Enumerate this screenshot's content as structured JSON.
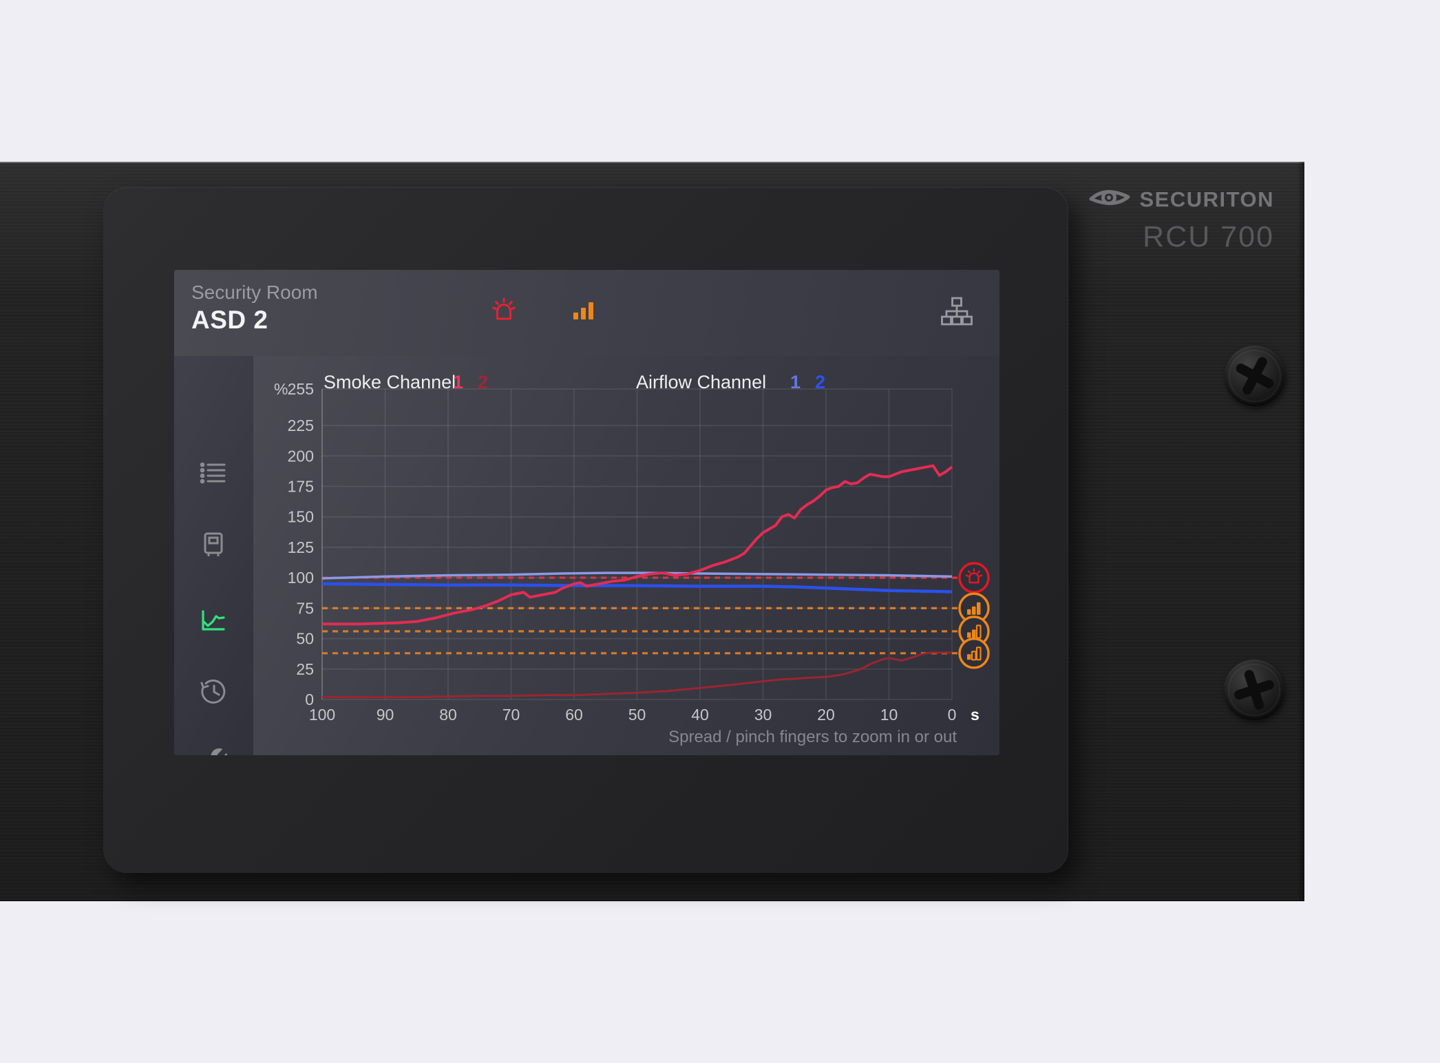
{
  "device": {
    "brand": "SECURITON",
    "model": "RCU 700",
    "brand_logo_icon": "eye-icon",
    "hardware": [
      "screw-top",
      "screw-bottom"
    ]
  },
  "screen": {
    "header": {
      "location": "Security Room",
      "detector_name": "ASD 2",
      "icons": [
        {
          "name": "alarm-beacon-icon",
          "color": "#e82132"
        },
        {
          "name": "smoke-level-bars-icon",
          "color": "#ef8718"
        },
        {
          "name": "network-icon",
          "color": "#9a9aa1"
        }
      ]
    },
    "sidebar": {
      "icon_color": "#8b8b92",
      "active_color": "#2de57d",
      "items": [
        {
          "id": "event-list",
          "icon": "list-icon",
          "active": false
        },
        {
          "id": "detector",
          "icon": "detector-icon",
          "active": false
        },
        {
          "id": "trend-chart",
          "icon": "chart-icon",
          "active": true
        },
        {
          "id": "history",
          "icon": "history-icon",
          "active": false
        },
        {
          "id": "settings",
          "icon": "wrench-icon",
          "active": false
        }
      ]
    },
    "legend": {
      "smoke": {
        "label": "Smoke Channel",
        "channels": [
          {
            "n": "1",
            "color": "#e8395c"
          },
          {
            "n": "2",
            "color": "#9e2732"
          }
        ]
      },
      "airflow": {
        "label": "Airflow Channel",
        "channels": [
          {
            "n": "1",
            "color": "#6577dd"
          },
          {
            "n": "2",
            "color": "#2d52f0"
          }
        ]
      }
    },
    "footer_hint": "Spread / pinch fingers to zoom in or out"
  },
  "chart_data": {
    "type": "line",
    "y_prefix": "%",
    "x_unit": "s",
    "xlim": [
      100,
      0
    ],
    "ylim": [
      0,
      255
    ],
    "x_ticks": [
      100,
      90,
      80,
      70,
      60,
      50,
      40,
      30,
      20,
      10,
      0
    ],
    "y_ticks": [
      0,
      25,
      50,
      75,
      100,
      125,
      150,
      175,
      200,
      225,
      255
    ],
    "grid": true,
    "tick_color": "#c6c6cb",
    "series": [
      {
        "name": "Smoke 2",
        "color": "#9b2530",
        "width": 3,
        "points": [
          [
            100,
            2
          ],
          [
            95,
            2
          ],
          [
            90,
            2
          ],
          [
            85,
            2
          ],
          [
            80,
            2.5
          ],
          [
            75,
            3
          ],
          [
            70,
            3
          ],
          [
            65,
            3.5
          ],
          [
            60,
            3.5
          ],
          [
            55,
            4.5
          ],
          [
            50,
            5.5
          ],
          [
            45,
            7
          ],
          [
            40,
            9.5
          ],
          [
            35,
            12
          ],
          [
            30,
            15
          ],
          [
            27,
            16.5
          ],
          [
            25,
            17
          ],
          [
            22,
            18
          ],
          [
            20,
            18.5
          ],
          [
            18,
            20
          ],
          [
            17,
            21
          ],
          [
            16,
            22.5
          ],
          [
            15,
            24
          ],
          [
            14,
            26
          ],
          [
            13,
            29
          ],
          [
            12,
            31
          ],
          [
            11,
            33
          ],
          [
            10,
            34
          ],
          [
            9,
            33
          ],
          [
            8,
            32
          ],
          [
            7,
            33.5
          ],
          [
            6,
            35
          ],
          [
            5,
            37
          ],
          [
            4,
            38
          ],
          [
            3,
            38.5
          ],
          [
            2,
            38.5
          ],
          [
            1,
            38.5
          ],
          [
            0,
            38.5
          ]
        ]
      },
      {
        "name": "Airflow 2",
        "color": "#2b50ee",
        "width": 4.5,
        "points": [
          [
            100,
            95
          ],
          [
            90,
            94.5
          ],
          [
            80,
            94
          ],
          [
            70,
            94
          ],
          [
            60,
            93.5
          ],
          [
            50,
            93.5
          ],
          [
            40,
            93
          ],
          [
            30,
            93
          ],
          [
            25,
            92.5
          ],
          [
            20,
            91.5
          ],
          [
            15,
            90.5
          ],
          [
            10,
            89.5
          ],
          [
            5,
            89
          ],
          [
            0,
            88.5
          ]
        ]
      },
      {
        "name": "Airflow 1",
        "color": "#8b99e6",
        "width": 3.5,
        "points": [
          [
            100,
            99.5
          ],
          [
            90,
            101
          ],
          [
            80,
            102
          ],
          [
            70,
            102.5
          ],
          [
            62,
            103.5
          ],
          [
            55,
            104
          ],
          [
            48,
            104
          ],
          [
            40,
            103.5
          ],
          [
            30,
            103
          ],
          [
            20,
            102.5
          ],
          [
            10,
            102
          ],
          [
            0,
            101
          ]
        ]
      },
      {
        "name": "Smoke 1",
        "color": "#e42c53",
        "width": 4,
        "points": [
          [
            100,
            62
          ],
          [
            97,
            62
          ],
          [
            94,
            62
          ],
          [
            91,
            62.5
          ],
          [
            88,
            63
          ],
          [
            85,
            64
          ],
          [
            82,
            67
          ],
          [
            79,
            71
          ],
          [
            76,
            74
          ],
          [
            74,
            77
          ],
          [
            72,
            81
          ],
          [
            70,
            86
          ],
          [
            68,
            88
          ],
          [
            67,
            84
          ],
          [
            65,
            86
          ],
          [
            63,
            88
          ],
          [
            62,
            91
          ],
          [
            60,
            95
          ],
          [
            59,
            96
          ],
          [
            58,
            93
          ],
          [
            56,
            95
          ],
          [
            54,
            97
          ],
          [
            52,
            98
          ],
          [
            50,
            101
          ],
          [
            48,
            103
          ],
          [
            46,
            104
          ],
          [
            44,
            102
          ],
          [
            42,
            103
          ],
          [
            40,
            106
          ],
          [
            38,
            110
          ],
          [
            36,
            113
          ],
          [
            34,
            117
          ],
          [
            33,
            120
          ],
          [
            32,
            126
          ],
          [
            31,
            132
          ],
          [
            30,
            137
          ],
          [
            29,
            140
          ],
          [
            28,
            143
          ],
          [
            27,
            150
          ],
          [
            26,
            152
          ],
          [
            25,
            149
          ],
          [
            24,
            156
          ],
          [
            23,
            160
          ],
          [
            22,
            163
          ],
          [
            21,
            167
          ],
          [
            20,
            172
          ],
          [
            19,
            174
          ],
          [
            18,
            175
          ],
          [
            17,
            179
          ],
          [
            16,
            177
          ],
          [
            15,
            178
          ],
          [
            14,
            182
          ],
          [
            13,
            185
          ],
          [
            12,
            184
          ],
          [
            11,
            183
          ],
          [
            10,
            183
          ],
          [
            9,
            185
          ],
          [
            8,
            187
          ],
          [
            7,
            188
          ],
          [
            6,
            189
          ],
          [
            5,
            190
          ],
          [
            4,
            191
          ],
          [
            3,
            192
          ],
          [
            2,
            184
          ],
          [
            1,
            187
          ],
          [
            0,
            191
          ]
        ]
      }
    ],
    "thresholds": [
      {
        "level": "alarm",
        "value": 100,
        "color": "#d63540",
        "icon": "beacon",
        "icon_color": "#e41724"
      },
      {
        "level": "pre-alarm-3",
        "value": 75,
        "color": "#d87b28",
        "icon": "bars-3",
        "icon_color": "#ef8718"
      },
      {
        "level": "pre-alarm-2",
        "value": 56,
        "color": "#d87b28",
        "icon": "bars-2",
        "icon_color": "#ef8718"
      },
      {
        "level": "pre-alarm-1",
        "value": 38,
        "color": "#d87b28",
        "icon": "bars-1",
        "icon_color": "#ef8718"
      }
    ],
    "legend_position": "top"
  }
}
